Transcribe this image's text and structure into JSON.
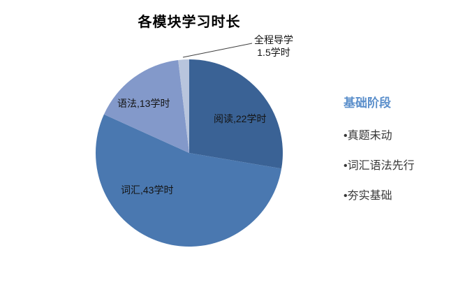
{
  "page": {
    "background": "#FFFFFF"
  },
  "chart_data": {
    "type": "pie",
    "title": "各模块学习时长",
    "unit": "学时",
    "legend": "none",
    "layout": {
      "start_angle": "12-o-clock",
      "direction": "clockwise",
      "labels": "inside-except-smallest"
    },
    "label_color": "#141414",
    "segments": [
      {
        "name": "阅读",
        "value": 22,
        "label": "阅读,22学时",
        "color": "#3A6295"
      },
      {
        "name": "词汇",
        "value": 43,
        "label": "词汇,43学时",
        "color": "#4A78B0"
      },
      {
        "name": "语法",
        "value": 13,
        "label": "语法,13学时",
        "color": "#8399CA"
      },
      {
        "name": "全程导学",
        "value": 1.5,
        "label_line1": "全程导学",
        "label_line2": "1.5学时",
        "color": "#B8C5DD"
      }
    ]
  },
  "side_panel": {
    "heading": "基础阶段",
    "heading_color": "#5B8FCB",
    "text_color": "#383838",
    "items": [
      "•真题未动",
      "•词汇语法先行",
      "•夯实基础"
    ]
  }
}
